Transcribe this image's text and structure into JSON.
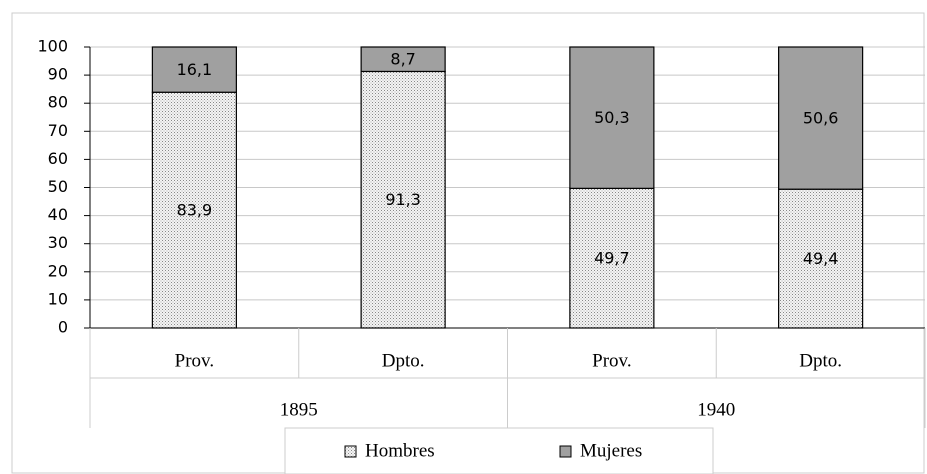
{
  "chart_data": {
    "type": "stacked_bar",
    "categories": [
      "Prov.",
      "Dpto.",
      "Prov.",
      "Dpto."
    ],
    "groups": [
      "1895",
      "1940"
    ],
    "series": [
      {
        "name": "Hombres",
        "color": "#d8d8d8",
        "values": [
          83.9,
          91.3,
          49.7,
          49.4
        ],
        "value_labels": [
          "83,9",
          "91,3",
          "49,7",
          "49,4"
        ]
      },
      {
        "name": "Mujeres",
        "color": "#a0a0a0",
        "values": [
          16.1,
          8.7,
          50.3,
          50.6
        ],
        "value_labels": [
          "16,1",
          "8,7",
          "50,3",
          "50,6"
        ]
      }
    ],
    "ylim": [
      0,
      100
    ],
    "yticks": [
      0,
      10,
      20,
      30,
      40,
      50,
      60,
      70,
      80,
      90,
      100
    ],
    "grid": true,
    "legend": "bottom"
  }
}
